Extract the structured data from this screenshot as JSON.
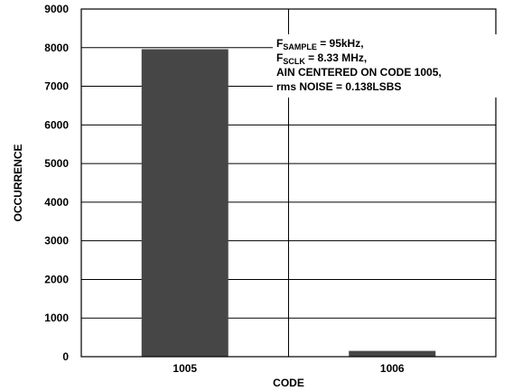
{
  "chart_data": {
    "type": "bar",
    "categories": [
      "1005",
      "1006"
    ],
    "values": [
      7960,
      150
    ],
    "xlabel": "CODE",
    "ylabel": "OCCURRENCE",
    "ylim": [
      0,
      9000
    ],
    "yticks": [
      "0",
      "1000",
      "2000",
      "3000",
      "4000",
      "5000",
      "6000",
      "7000",
      "8000",
      "9000"
    ],
    "grid": true,
    "bar_color": "#464646",
    "annotation": [
      {
        "main": "F",
        "sub": "SAMPLE",
        "rest": " = 95kHz,"
      },
      {
        "main": "F",
        "sub": "SCLK",
        "rest": " = 8.33 MHz,"
      },
      {
        "main": "AIN CENTERED ON CODE 1005,",
        "sub": "",
        "rest": ""
      },
      {
        "main": "rms NOISE = 0.138LSBS",
        "sub": "",
        "rest": ""
      }
    ]
  }
}
